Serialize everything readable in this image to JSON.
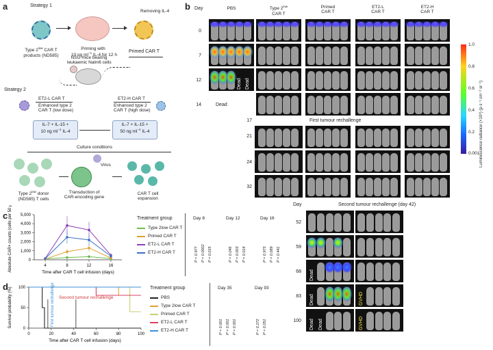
{
  "panel_a": {
    "label": "a",
    "strategy1": "Strategy 1",
    "strategy2": "Strategy 2",
    "removing": "Removing IL-4",
    "type2_products": [
      "Type 2",
      "low",
      " CAR T",
      "products (ND585)"
    ],
    "priming": [
      "Priming with",
      "10 ng ml",
      "−1",
      " IL-4 for 12 h"
    ],
    "primed": "Primed CAR T",
    "nsg": [
      "NSG mice bearing",
      "leukaemic Nalm6 cells"
    ],
    "et2l_title": "ET2-L CAR T",
    "et2l_desc": [
      "Enhanced type 2",
      "CAR T (low dose)"
    ],
    "et2h_title": "ET2-H CAR T",
    "et2h_desc": [
      "Enhanced type 2",
      "CAR T (high dose)"
    ],
    "box_low": [
      "IL-7 + IL-15 +",
      "10 ng ml",
      "−1",
      " IL-4"
    ],
    "box_high": [
      "IL-7 + IL-15 +",
      "50 ng ml",
      "−1",
      " IL-4"
    ],
    "culture": "Culture conditions",
    "virus": "Virus",
    "donor": [
      "Type 2",
      "low",
      " donor",
      "(ND585) T cells"
    ],
    "transduction": [
      "Transduction of",
      "CAR-encoding gene"
    ],
    "expansion": [
      "CAR T cell",
      "expansion"
    ]
  },
  "panel_b": {
    "label": "b",
    "day_header": "Day",
    "columns": [
      "PBS",
      "Type 2low CAR T",
      "Primed CAR T",
      "ET2-L CAR T",
      "ET2-H CAR T"
    ],
    "col_pbs": "PBS",
    "col_type2": [
      "Type 2",
      "low",
      "CAR T"
    ],
    "col_primed": [
      "Primed",
      "CAR T"
    ],
    "col_et2l": [
      "ET2-L",
      "CAR T"
    ],
    "col_et2h": [
      "ET2-H",
      "CAR T"
    ],
    "days_upper": [
      "0",
      "7",
      "12",
      "14"
    ],
    "days_first": [
      "17",
      "21",
      "24",
      "32"
    ],
    "first_rechallenge": "First tumour rechallenge",
    "second_day_header": "Day",
    "second_rechallenge": "Second tumour rechallenge (day 42)",
    "days_second": [
      "52",
      "59",
      "68",
      "83",
      "100"
    ],
    "dead": "Dead",
    "gvhd": "GVHD",
    "colorbar_ticks": [
      "1.0",
      "0.8",
      "0.6",
      "0.4",
      "0.2",
      "0.001"
    ],
    "colorbar_label": "Luminescence radiance (×10⁸) (p s⁻¹ cm⁻² sr⁻¹)",
    "colors": {
      "bar_top": "#ff2a1a",
      "bar_mid": "#5cff2a",
      "bar_low": "#1a6bff",
      "bar_bottom": "#3a1aa0"
    }
  },
  "panel_c": {
    "label": "c",
    "ylabel": "Absolute CAR+ counts (cells per 50 µl)",
    "xlabel": "Time after CAR T cell infusion (days)",
    "yticks": [
      "5,000",
      "4,000",
      "3,000",
      "2,000",
      "1,000",
      "0"
    ],
    "xticks": [
      "4",
      "8",
      "12",
      "16"
    ],
    "legend_title": "Treatment group",
    "legend": [
      "Type 2low CAR T",
      "Primed CAR T",
      "ET2-L CAR T",
      "ET2-H CAR T"
    ],
    "days": [
      "Day 8",
      "Day 12",
      "Day 16"
    ],
    "pvalues": [
      [
        "P = 0.977",
        "P = 0.0002",
        "P = 0.015"
      ],
      [
        "P = 0.045",
        "P = 0.003",
        "P = 0.014"
      ],
      [
        "P = 0.973",
        "P = 0.089",
        "P = 0.441"
      ]
    ]
  },
  "panel_d": {
    "label": "d",
    "ylabel": "Survival probability (%)",
    "xlabel": "Time after CAR T cell infusion (days)",
    "yticks": [
      "100",
      "50",
      "0"
    ],
    "xticks": [
      "0",
      "20",
      "40",
      "60",
      "80",
      "100"
    ],
    "first_rechallenge": "First tumour rechallenge",
    "second_rechallenge": "Second tumour rechallenge",
    "legend_title": "Treatment group",
    "legend": [
      "PBS",
      "Type 2low CAR T",
      "Primed CAR T",
      "ET2-L CAR T",
      "ET2-H CAR T"
    ],
    "days": [
      "Day 35",
      "Day 93"
    ],
    "pvalues": [
      [
        "P = 0.001",
        "P = 0.001",
        "P = 0.001"
      ],
      [
        "P = 0.272",
        "P = 0.051"
      ]
    ]
  },
  "chart_data": [
    {
      "type": "line",
      "panel": "c",
      "x": [
        4,
        8,
        12,
        16
      ],
      "xlabel": "Time after CAR T cell infusion (days)",
      "ylabel": "Absolute CAR+ counts (cells per 50 µl)",
      "ylim": [
        0,
        5000
      ],
      "series": [
        {
          "name": "Type 2low CAR T",
          "color": "#6dbb4a",
          "values": [
            100,
            250,
            350,
            120
          ]
        },
        {
          "name": "Primed CAR T",
          "color": "#e0a030",
          "values": [
            80,
            900,
            1300,
            200
          ]
        },
        {
          "name": "ET2-L CAR T",
          "color": "#8a3fb5",
          "values": [
            150,
            3800,
            3300,
            500
          ]
        },
        {
          "name": "ET2-H CAR T",
          "color": "#3a6fc6",
          "values": [
            120,
            2500,
            2200,
            400
          ]
        }
      ]
    },
    {
      "type": "line",
      "panel": "d",
      "xlabel": "Time after CAR T cell infusion (days)",
      "ylabel": "Survival probability (%)",
      "xlim": [
        0,
        100
      ],
      "ylim": [
        0,
        100
      ],
      "series": [
        {
          "name": "PBS",
          "color": "#222222",
          "x": [
            0,
            12,
            12,
            14,
            14,
            100
          ],
          "y": [
            100,
            100,
            50,
            50,
            0,
            0
          ]
        },
        {
          "name": "Type 2low CAR T",
          "color": "#e0a030",
          "x": [
            0,
            80,
            80,
            100
          ],
          "y": [
            100,
            100,
            80,
            80
          ]
        },
        {
          "name": "Primed CAR T",
          "color": "#c8d070",
          "x": [
            0,
            90,
            90,
            100
          ],
          "y": [
            100,
            100,
            40,
            40
          ]
        },
        {
          "name": "ET2-L CAR T",
          "color": "#d84060",
          "x": [
            0,
            60,
            60,
            100
          ],
          "y": [
            100,
            100,
            80,
            80
          ]
        },
        {
          "name": "ET2-H CAR T",
          "color": "#3a8fd6",
          "x": [
            0,
            100
          ],
          "y": [
            100,
            100
          ]
        }
      ]
    }
  ]
}
